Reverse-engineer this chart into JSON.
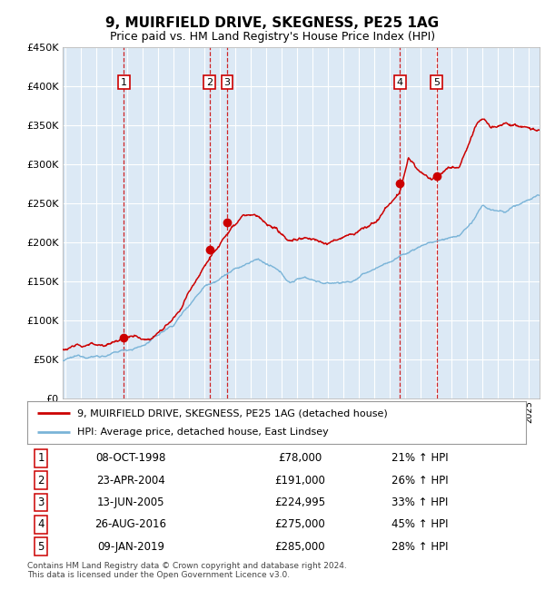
{
  "title": "9, MUIRFIELD DRIVE, SKEGNESS, PE25 1AG",
  "subtitle": "Price paid vs. HM Land Registry's House Price Index (HPI)",
  "ylim": [
    0,
    450000
  ],
  "yticks": [
    0,
    50000,
    100000,
    150000,
    200000,
    250000,
    300000,
    350000,
    400000,
    450000
  ],
  "xlim_start": 1994.8,
  "xlim_end": 2025.7,
  "background_color": "#dce9f5",
  "grid_color": "#ffffff",
  "sale_color": "#cc0000",
  "hpi_color": "#7ab4d8",
  "transactions": [
    {
      "num": 1,
      "date": "08-OCT-1998",
      "year": 1998.77,
      "price": 78000,
      "pct": "21%",
      "dir": "↑"
    },
    {
      "num": 2,
      "date": "23-APR-2004",
      "year": 2004.31,
      "price": 191000,
      "pct": "26%",
      "dir": "↑"
    },
    {
      "num": 3,
      "date": "13-JUN-2005",
      "year": 2005.45,
      "price": 224995,
      "pct": "33%",
      "dir": "↑"
    },
    {
      "num": 4,
      "date": "26-AUG-2016",
      "year": 2016.65,
      "price": 275000,
      "pct": "45%",
      "dir": "↑"
    },
    {
      "num": 5,
      "date": "09-JAN-2019",
      "year": 2019.03,
      "price": 285000,
      "pct": "28%",
      "dir": "↑"
    }
  ],
  "legend_label_red": "9, MUIRFIELD DRIVE, SKEGNESS, PE25 1AG (detached house)",
  "legend_label_blue": "HPI: Average price, detached house, East Lindsey",
  "footer": "Contains HM Land Registry data © Crown copyright and database right 2024.\nThis data is licensed under the Open Government Licence v3.0.",
  "table_rows": [
    [
      "1",
      "08-OCT-1998",
      "£78,000",
      "21% ↑ HPI"
    ],
    [
      "2",
      "23-APR-2004",
      "£191,000",
      "26% ↑ HPI"
    ],
    [
      "3",
      "13-JUN-2005",
      "£224,995",
      "33% ↑ HPI"
    ],
    [
      "4",
      "26-AUG-2016",
      "£275,000",
      "45% ↑ HPI"
    ],
    [
      "5",
      "09-JAN-2019",
      "£285,000",
      "28% ↑ HPI"
    ]
  ],
  "hpi_anchors_x": [
    1994.8,
    1996.0,
    1998.0,
    2000.0,
    2002.0,
    2004.0,
    2005.5,
    2007.5,
    2008.5,
    2009.5,
    2010.5,
    2012.0,
    2013.5,
    2015.0,
    2016.5,
    2017.5,
    2018.5,
    2019.5,
    2020.5,
    2021.5,
    2022.0,
    2022.5,
    2023.5,
    2025.0,
    2025.7
  ],
  "hpi_anchors_y": [
    48000,
    52000,
    57000,
    68000,
    95000,
    148000,
    167000,
    183000,
    170000,
    150000,
    158000,
    150000,
    153000,
    168000,
    183000,
    193000,
    203000,
    207000,
    212000,
    232000,
    248000,
    243000,
    238000,
    255000,
    260000
  ],
  "prop_anchors_x": [
    1994.8,
    1996.0,
    1997.5,
    1998.77,
    2000.5,
    2002.5,
    2004.31,
    2005.45,
    2006.5,
    2007.5,
    2008.5,
    2009.5,
    2010.5,
    2012.0,
    2013.5,
    2015.0,
    2016.0,
    2016.65,
    2017.2,
    2017.8,
    2018.5,
    2019.03,
    2019.8,
    2020.5,
    2021.5,
    2022.0,
    2022.5,
    2023.5,
    2024.5,
    2025.7
  ],
  "prop_anchors_y": [
    62000,
    65000,
    70000,
    78000,
    82000,
    118000,
    191000,
    224995,
    255000,
    248000,
    225000,
    210000,
    215000,
    210000,
    220000,
    235000,
    260000,
    275000,
    315000,
    300000,
    285000,
    285000,
    298000,
    295000,
    345000,
    360000,
    345000,
    352000,
    348000,
    345000
  ]
}
